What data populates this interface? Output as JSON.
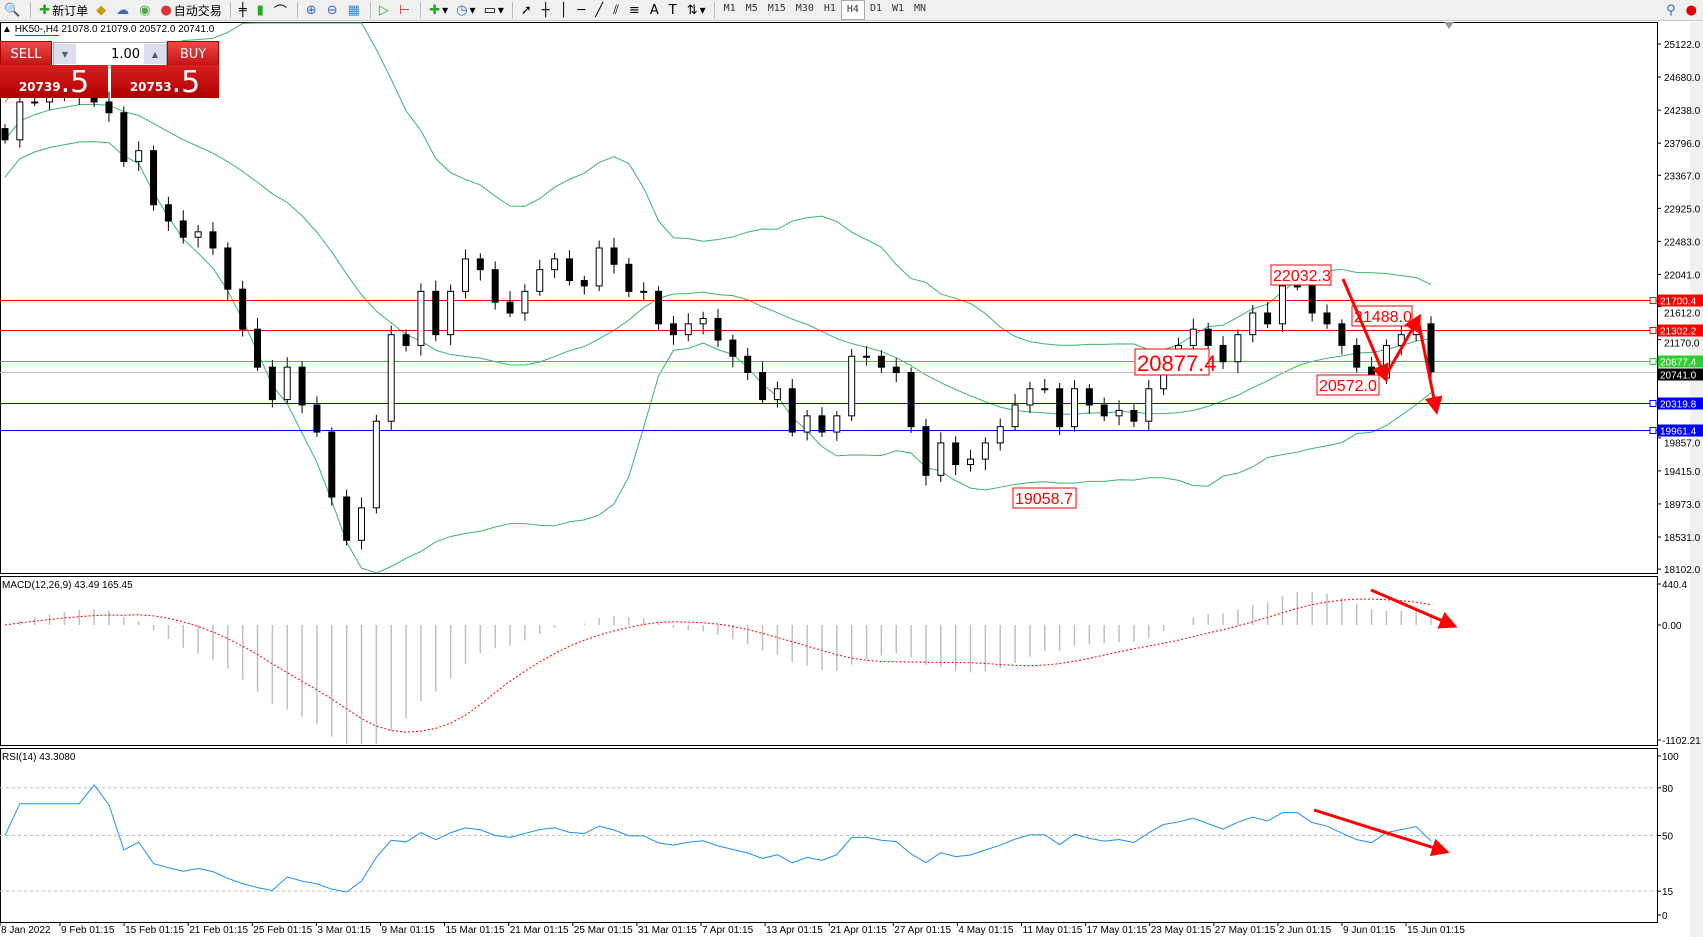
{
  "toolbar": {
    "new_order_label": "新订单",
    "auto_trading_label": "自动交易",
    "timeframes": [
      "M1",
      "M5",
      "M15",
      "M30",
      "H1",
      "H4",
      "D1",
      "W1",
      "MN"
    ],
    "active_timeframe": "H4"
  },
  "chart_header": {
    "symbol": "HK50-,H4",
    "ohlc": "21078.0 21079.0 20572.0 20741.0"
  },
  "trade_panel": {
    "sell_label": "SELL",
    "buy_label": "BUY",
    "lot": "1.00",
    "sell_price_main": "20739",
    "sell_price_big": ".5",
    "buy_price_main": "20753",
    "buy_price_big": ".5"
  },
  "indicators": {
    "macd_label": "MACD(12,26,9) 43.49 165.45",
    "rsi_label": "RSI(14) 43.3080"
  },
  "colors": {
    "bollinger": "#3cb371",
    "resistance": "#ff0000",
    "support": "#0000ff",
    "pivot": "#32cd32",
    "current": "#000000",
    "macd_hist": "#c0c0c0",
    "macd_signal": "#ff0000",
    "rsi": "#1e90ff",
    "annotation": "#ff0000"
  },
  "chart_data": {
    "type": "candlestick",
    "timeframe": "H4",
    "closes_approx": [
      23841,
      24347,
      24347,
      24420,
      24420,
      24492,
      24347,
      24203,
      23552,
      23696,
      22973,
      22756,
      22539,
      22611,
      22395,
      21844,
      21309,
      20802,
      20368,
      20802,
      20296,
      19934,
      19066,
      18487,
      18921,
      20079,
      21236,
      21092,
      21815,
      21236,
      21815,
      22249,
      22105,
      21671,
      21526,
      21815,
      22105,
      22249,
      21960,
      21888,
      22395,
      22177,
      21815,
      21815,
      21381,
      21236,
      21381,
      21453,
      21164,
      20947,
      20730,
      20368,
      20513,
      19934,
      20151,
      19934,
      20151,
      20947,
      20947,
      20802,
      20730,
      20006,
      19355,
      19789,
      19500,
      19572,
      19789,
      20006,
      20296,
      20513,
      20513,
      20006,
      20513,
      20296,
      20151,
      20223,
      20079,
      20513,
      20947,
      21092,
      21309,
      21092,
      20874,
      21236,
      21526,
      21381,
      21888,
      21888,
      21526,
      21381,
      21092,
      20802,
      20657,
      21092,
      21236,
      21381,
      20741
    ],
    "price_axis": {
      "min": 18102.0,
      "max": 25122.0,
      "ticks": [
        "25122.0",
        "24680.0",
        "24238.0",
        "23796.0",
        "23367.0",
        "22925.0",
        "22483.0",
        "22041.0",
        "21612.0",
        "21170.0",
        "19857.0",
        "19415.0",
        "18973.0",
        "18531.0",
        "18102.0"
      ]
    },
    "time_axis": [
      "8 Jan 2022",
      "9 Feb 01:15",
      "15 Feb 01:15",
      "21 Feb 01:15",
      "25 Feb 01:15",
      "3 Mar 01:15",
      "9 Mar 01:15",
      "15 Mar 01:15",
      "21 Mar 01:15",
      "25 Mar 01:15",
      "31 Mar 01:15",
      "7 Apr 01:15",
      "13 Apr 01:15",
      "21 Apr 01:15",
      "27 Apr 01:15",
      "4 May 01:15",
      "11 May 01:15",
      "17 May 01:15",
      "23 May 01:15",
      "27 May 01:15",
      "2 Jun 01:15",
      "9 Jun 01:15",
      "15 Jun 01:15"
    ],
    "levels": [
      {
        "price": 21700.4,
        "label": "21700.4",
        "kind": "resistance"
      },
      {
        "price": 21302.2,
        "label": "21302.2",
        "kind": "resistance"
      },
      {
        "price": 20877.4,
        "label": "20877.4",
        "kind": "pivot"
      },
      {
        "price": 20741.0,
        "label": "20741.0",
        "kind": "current"
      },
      {
        "price": 20319.8,
        "label": "20319.8",
        "kind": "support"
      },
      {
        "price": 19961.4,
        "label": "19961.4",
        "kind": "support"
      }
    ],
    "annotations": [
      {
        "label": "22032.3",
        "price": 22032.3
      },
      {
        "label": "21488.0",
        "price": 21488.0
      },
      {
        "label": "20877.4",
        "price": 20877.4
      },
      {
        "label": "20572.0",
        "price": 20572.0
      },
      {
        "label": "19058.7",
        "price": 19058.7
      }
    ],
    "macd_axis": {
      "max": 440.4,
      "min": -1102.21,
      "ticks": [
        "440.4",
        "0.00",
        "-1102.21"
      ]
    },
    "rsi_axis": {
      "ticks": [
        "100",
        "80",
        "50",
        "15",
        "0"
      ],
      "levels": [
        80,
        50,
        15
      ]
    }
  }
}
